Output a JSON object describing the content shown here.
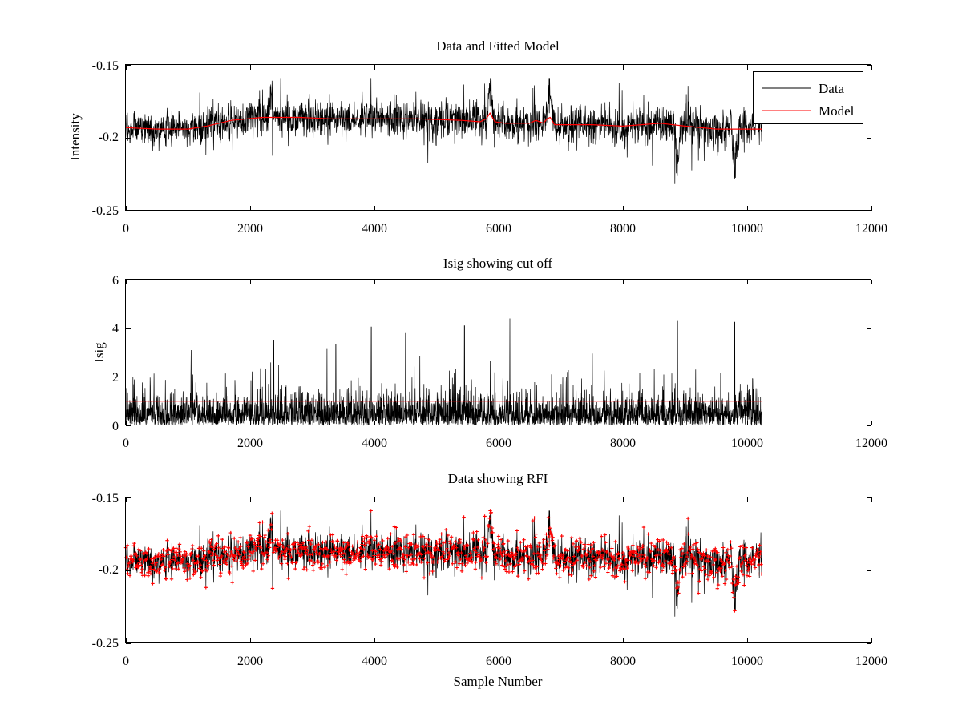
{
  "chart_data": [
    {
      "type": "line",
      "title": "Data and Fitted Model",
      "xlabel": "",
      "ylabel": "Intensity",
      "xlim": [
        0,
        12000
      ],
      "ylim": [
        -0.25,
        -0.15
      ],
      "y_reversed": true,
      "xticks": [
        0,
        2000,
        4000,
        6000,
        8000,
        10000,
        12000
      ],
      "yticks": [
        -0.15,
        -0.2,
        -0.25
      ],
      "xtick_labels": [
        "0",
        "2000",
        "4000",
        "6000",
        "8000",
        "10000",
        "12000"
      ],
      "ytick_labels": [
        "-0.15",
        "-0.2",
        "-0.25"
      ],
      "grid": false,
      "legend": {
        "position": "top-right",
        "entries": [
          "Data",
          "Model"
        ]
      },
      "series": [
        {
          "name": "Data",
          "color": "#000000",
          "style": "noisy-line",
          "n_samples": 10240,
          "noise_amplitude": 0.012,
          "min": -0.232,
          "max": -0.159,
          "spikes": [
            {
              "x": 5860,
              "y": -0.159
            },
            {
              "x": 6820,
              "y": -0.166
            },
            {
              "x": 2330,
              "y": -0.164
            },
            {
              "x": 9800,
              "y": -0.232
            },
            {
              "x": 8880,
              "y": -0.228
            }
          ]
        },
        {
          "name": "Model",
          "color": "#ff0000",
          "style": "line",
          "x": [
            0,
            500,
            1000,
            1300,
            1700,
            2200,
            2800,
            3300,
            4000,
            4700,
            5400,
            5700,
            5800,
            5860,
            5940,
            6100,
            6500,
            6600,
            6720,
            6780,
            6830,
            6900,
            7500,
            8000,
            8300,
            8600,
            9000,
            9500,
            10240
          ],
          "y": [
            -0.193,
            -0.194,
            -0.194,
            -0.192,
            -0.188,
            -0.186,
            -0.186,
            -0.187,
            -0.187,
            -0.187,
            -0.188,
            -0.189,
            -0.187,
            -0.183,
            -0.189,
            -0.19,
            -0.19,
            -0.188,
            -0.19,
            -0.187,
            -0.186,
            -0.191,
            -0.191,
            -0.192,
            -0.191,
            -0.19,
            -0.192,
            -0.194,
            -0.194
          ]
        }
      ]
    },
    {
      "type": "line",
      "title": "Isig showing cut off",
      "xlabel": "",
      "ylabel": "Isig",
      "xlim": [
        0,
        12000
      ],
      "ylim": [
        0,
        6
      ],
      "xticks": [
        0,
        2000,
        4000,
        6000,
        8000,
        10000,
        12000
      ],
      "yticks": [
        0,
        2,
        4,
        6
      ],
      "xtick_labels": [
        "0",
        "2000",
        "4000",
        "6000",
        "8000",
        "10000",
        "12000"
      ],
      "ytick_labels": [
        "0",
        "2",
        "4",
        "6"
      ],
      "grid": false,
      "series": [
        {
          "name": "Isig",
          "color": "#000000",
          "style": "noisy-line",
          "n_samples": 10240,
          "min": 0,
          "max": 4.4,
          "peaks": [
            {
              "x": 6180,
              "y": 4.4
            },
            {
              "x": 8880,
              "y": 4.3
            },
            {
              "x": 9800,
              "y": 4.25
            },
            {
              "x": 3950,
              "y": 4.05
            },
            {
              "x": 5450,
              "y": 4.1
            },
            {
              "x": 4500,
              "y": 3.8
            },
            {
              "x": 2380,
              "y": 3.5
            },
            {
              "x": 3380,
              "y": 3.35
            },
            {
              "x": 1050,
              "y": 3.1
            }
          ]
        },
        {
          "name": "cut off",
          "color": "#ff0000",
          "style": "line",
          "x": [
            0,
            10240
          ],
          "y": [
            1,
            1
          ]
        }
      ]
    },
    {
      "type": "line",
      "title": "Data showing RFI",
      "xlabel": "Sample Number",
      "ylabel": "",
      "xlim": [
        0,
        12000
      ],
      "ylim": [
        -0.25,
        -0.15
      ],
      "y_reversed": true,
      "xticks": [
        0,
        2000,
        4000,
        6000,
        8000,
        10000,
        12000
      ],
      "yticks": [
        -0.15,
        -0.2,
        -0.25
      ],
      "xtick_labels": [
        "0",
        "2000",
        "4000",
        "6000",
        "8000",
        "10000",
        "12000"
      ],
      "ytick_labels": [
        "-0.15",
        "-0.2",
        "-0.25"
      ],
      "grid": false,
      "series": [
        {
          "name": "Data",
          "color": "#000000",
          "style": "noisy-line",
          "n_samples": 10240
        },
        {
          "name": "RFI",
          "color": "#ff0000",
          "style": "markers",
          "marker": "+",
          "n_samples": 10240
        }
      ]
    }
  ]
}
